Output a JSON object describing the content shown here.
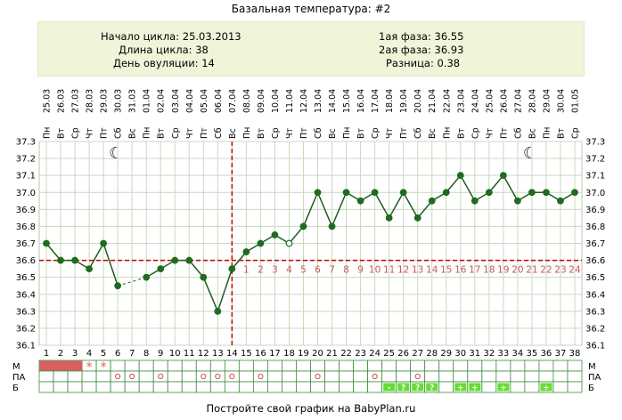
{
  "title": "Базальная температура: #2",
  "info": {
    "cycle_start": "Начало цикла: 25.03.2013",
    "cycle_length": "Длина цикла: 38",
    "ovulation_day": "День овуляции: 14",
    "phase1": "1ая фаза: 36.55",
    "phase2": "2ая фаза: 36.93",
    "difference": "Разница: 0.38"
  },
  "footer": "Постройте свой график на BabyPlan.ru",
  "colors": {
    "line": "#1f5e1f",
    "point": "#1f6b1f",
    "coverline": "#cc0000",
    "ovulation_line": "#cc0000",
    "menses": "#d86060",
    "mucus_cell": "#66dd33",
    "grid": "#c9d9c0",
    "info_bg": "#eef5d9"
  },
  "chart_data": {
    "type": "line",
    "title": "Базальная температура: #2",
    "ylim": [
      36.1,
      37.3
    ],
    "yticks": [
      "37.3",
      "37.2",
      "37.1",
      "37.0",
      "36.9",
      "36.8",
      "36.7",
      "36.6",
      "36.5",
      "36.4",
      "36.3",
      "36.2",
      "36.1"
    ],
    "weekdays": [
      "Пн",
      "Вт",
      "Ср",
      "Чт",
      "Пт",
      "Сб",
      "Вс",
      "Пн",
      "Вт",
      "Ср",
      "Чт",
      "Пт",
      "Сб",
      "Вс",
      "Пн",
      "Вт",
      "Ср",
      "Чт",
      "Пт",
      "Сб",
      "Вс",
      "Пн",
      "Вт",
      "Ср",
      "Чт",
      "Пт",
      "Сб",
      "Вс",
      "Пн",
      "Вт",
      "Ср",
      "Чт",
      "Пт",
      "Сб",
      "Вс",
      "Пн",
      "Вт",
      "Ср"
    ],
    "dates": [
      "25.03",
      "26.03",
      "27.03",
      "28.03",
      "29.03",
      "30.03",
      "31.03",
      "01.04",
      "02.04",
      "03.04",
      "04.04",
      "05.04",
      "06.04",
      "07.04",
      "08.04",
      "09.04",
      "10.04",
      "11.04",
      "12.04",
      "13.04",
      "14.04",
      "15.04",
      "16.04",
      "17.04",
      "18.04",
      "19.04",
      "20.04",
      "21.04",
      "22.04",
      "23.04",
      "24.04",
      "25.04",
      "26.04",
      "27.04",
      "28.04",
      "29.04",
      "30.04",
      "01.05"
    ],
    "days": [
      1,
      2,
      3,
      4,
      5,
      6,
      7,
      8,
      9,
      10,
      11,
      12,
      13,
      14,
      15,
      16,
      17,
      18,
      19,
      20,
      21,
      22,
      23,
      24,
      25,
      26,
      27,
      28,
      29,
      30,
      31,
      32,
      33,
      34,
      35,
      36,
      37,
      38
    ],
    "temperatures": [
      36.7,
      36.6,
      36.6,
      36.55,
      36.7,
      36.45,
      null,
      36.5,
      36.55,
      36.6,
      36.6,
      36.5,
      36.3,
      36.55,
      36.65,
      36.7,
      36.75,
      36.7,
      36.8,
      37.0,
      36.8,
      37.0,
      36.95,
      37.0,
      36.85,
      37.0,
      36.85,
      36.95,
      37.0,
      37.1,
      36.95,
      37.0,
      37.1,
      36.95,
      37.0,
      37.0,
      36.95,
      37.0
    ],
    "open_points": [
      18
    ],
    "dashed_segments": [
      [
        6,
        8
      ]
    ],
    "coverline": 36.6,
    "ovulation_day": 14,
    "phase2_day_numbers": [
      1,
      2,
      3,
      4,
      5,
      6,
      7,
      8,
      9,
      10,
      11,
      12,
      13,
      14,
      15,
      16,
      17,
      18,
      19,
      20,
      21,
      22,
      23,
      24
    ],
    "moon_days": [
      6,
      35
    ],
    "rows": {
      "labels": [
        "М",
        "ПА",
        "Б"
      ],
      "menses_days": [
        1,
        2,
        3
      ],
      "menses_star_days": [
        4,
        5
      ],
      "pa_circle_days": [
        6,
        7,
        9,
        12,
        13,
        14,
        16,
        20,
        24,
        27
      ],
      "mucus_cells": [
        {
          "day": 25,
          "mark": "-"
        },
        {
          "day": 26,
          "mark": "?"
        },
        {
          "day": 27,
          "mark": "?"
        },
        {
          "day": 28,
          "mark": "?"
        },
        {
          "day": 30,
          "mark": "+"
        },
        {
          "day": 31,
          "mark": "+"
        },
        {
          "day": 33,
          "mark": "+"
        },
        {
          "day": 36,
          "mark": "+"
        }
      ]
    }
  }
}
